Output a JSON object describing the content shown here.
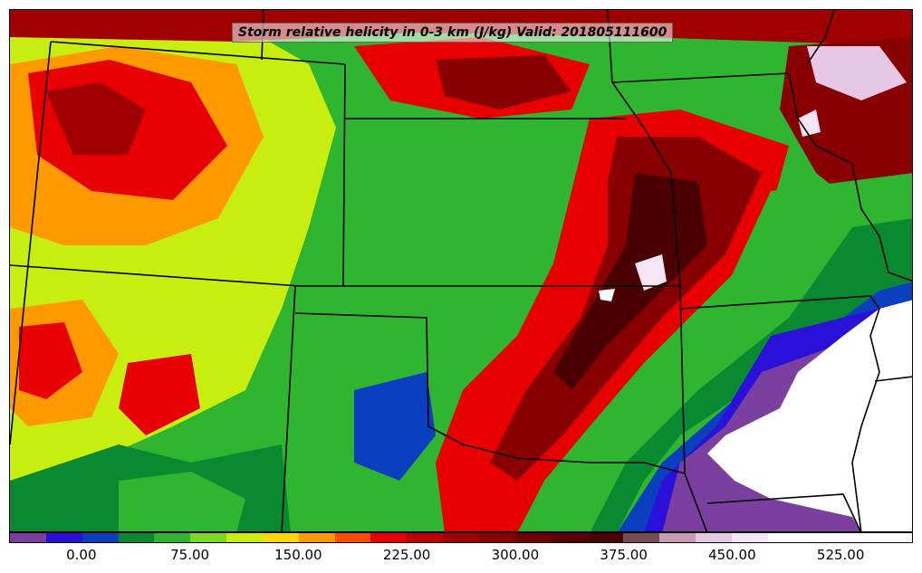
{
  "title": "Storm relative helicity in 0-3 km (J/kg) Valid: 201805111600",
  "colorbar": {
    "tick_labels": [
      "0.00",
      "75.00",
      "150.00",
      "225.00",
      "300.00",
      "375.00",
      "450.00",
      "525.00"
    ],
    "tick_values": [
      0,
      75,
      150,
      225,
      300,
      375,
      450,
      525
    ],
    "range": [
      -50,
      575
    ],
    "colors": [
      "#7b3fa0",
      "#2a10d8",
      "#0a3fc0",
      "#0a8a30",
      "#2fb52f",
      "#7ed81f",
      "#c8ee10",
      "#ffd700",
      "#ff9900",
      "#ff4a00",
      "#e80000",
      "#c00000",
      "#a00000",
      "#880000",
      "#700000",
      "#5a0000",
      "#4a0000",
      "#7a4a52",
      "#c89ab8",
      "#e6c8e6",
      "#f4e4f4",
      "#ffffff",
      "#ffffff",
      "#ffffff",
      "#ffffff"
    ]
  },
  "colors": {
    "frame": "#000000",
    "state_lines": "#000000",
    "no_data": "#ffffff"
  }
}
